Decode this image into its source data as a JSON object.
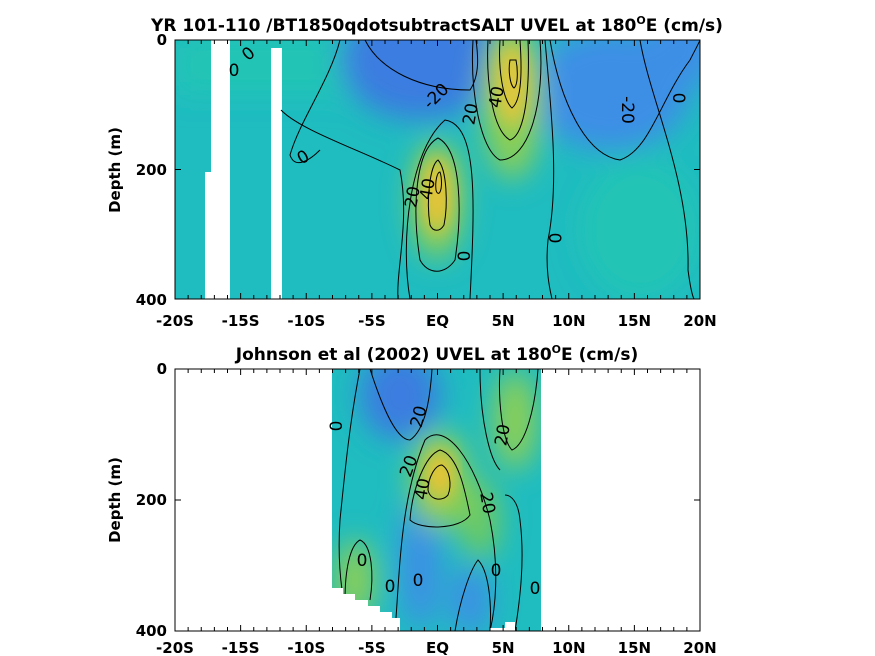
{
  "chart_data": [
    {
      "type": "heatmap",
      "title_prefix": "YR 101-110 /BT1850qdotsubtractSALT UVEL at 180",
      "title_sup": "O",
      "title_suffix": "E (cm/s)",
      "ylabel": "Depth (m)",
      "x_ticks": [
        "-20S",
        "-15S",
        "-10S",
        "-5S",
        "EQ",
        "5N",
        "10N",
        "15N",
        "20N"
      ],
      "y_ticks": [
        "0",
        "200",
        "400"
      ],
      "xlim": [
        -20,
        20
      ],
      "ylim": [
        0,
        400
      ],
      "contour_labels": [
        "0",
        "0",
        "0",
        "-20",
        "20",
        "40",
        "-20",
        "0",
        "20",
        "40",
        "0",
        "0"
      ],
      "colors": {
        "background": "#1fbcc0",
        "negative": "#3a7de0",
        "positive_mid": "#8ccf55",
        "positive_high": "#f2c232"
      }
    },
    {
      "type": "heatmap",
      "title_prefix": "Johnson et al (2002) UVEL at 180",
      "title_sup": "O",
      "title_suffix": "E (cm/s)",
      "ylabel": "Depth (m)",
      "x_ticks": [
        "-20S",
        "-15S",
        "-10S",
        "-5S",
        "EQ",
        "5N",
        "10N",
        "15N",
        "20N"
      ],
      "y_ticks": [
        "0",
        "200",
        "400"
      ],
      "xlim": [
        -20,
        20
      ],
      "ylim": [
        0,
        400
      ],
      "data_range": [
        -8,
        8
      ],
      "contour_labels": [
        "0",
        "20",
        "20",
        "40",
        "20",
        "20",
        "0",
        "0",
        "0",
        "0",
        "0"
      ],
      "colors": {
        "background": "#1fbcc0",
        "negative": "#3a7de0",
        "positive_mid": "#8ccf55",
        "positive_high": "#f2c232"
      }
    }
  ]
}
